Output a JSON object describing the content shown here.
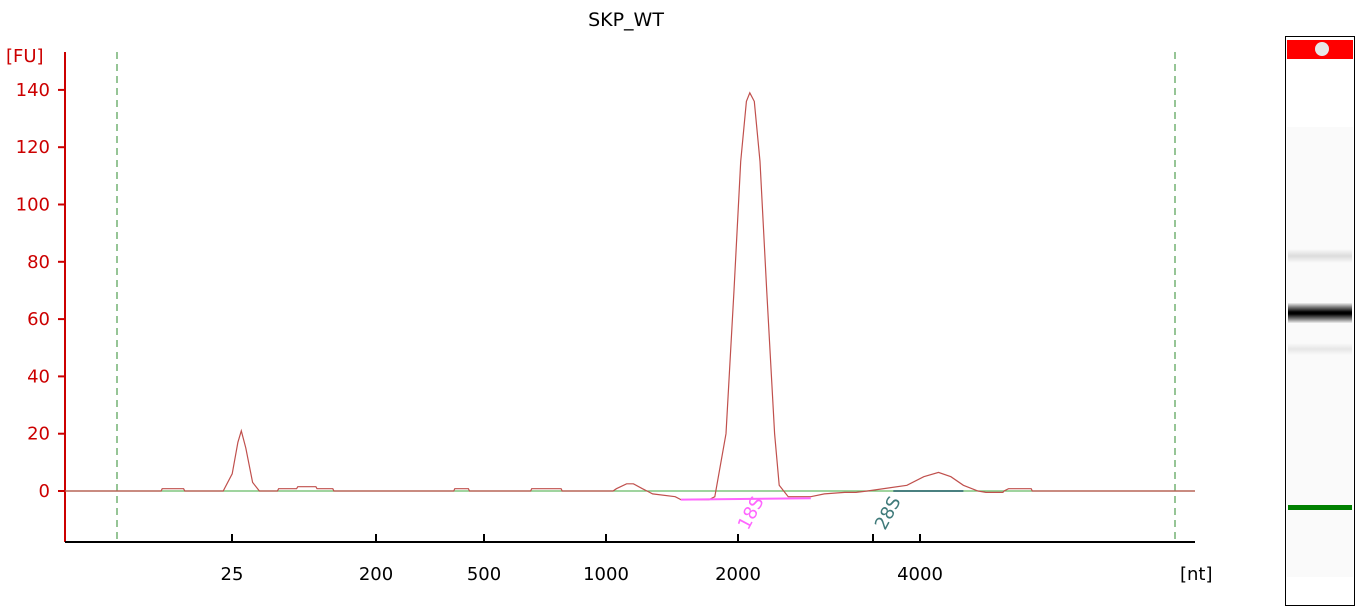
{
  "chart_data": {
    "type": "line",
    "title": "SKP_WT",
    "ylabel": "[FU]",
    "xlabel": "[nt]",
    "ylim": [
      -17,
      153
    ],
    "y_ticks": [
      0,
      20,
      40,
      60,
      80,
      100,
      120,
      140
    ],
    "x_ticks": [
      "25",
      "200",
      "500",
      "1000",
      "2000",
      "4000"
    ],
    "x_scale": "nonlinear",
    "grid": false,
    "markers": [
      "18S",
      "28S"
    ],
    "series": [
      {
        "color": "#c0504d",
        "points": [
          [
            0.0,
            0
          ],
          [
            0.085,
            0
          ],
          [
            0.086,
            0.8
          ],
          [
            0.105,
            0.8
          ],
          [
            0.106,
            0
          ],
          [
            0.14,
            0
          ],
          [
            0.148,
            6
          ],
          [
            0.153,
            17
          ],
          [
            0.156,
            21
          ],
          [
            0.16,
            15
          ],
          [
            0.166,
            3
          ],
          [
            0.172,
            0
          ],
          [
            0.188,
            0
          ],
          [
            0.189,
            0.8
          ],
          [
            0.205,
            0.8
          ],
          [
            0.206,
            1.5
          ],
          [
            0.222,
            1.5
          ],
          [
            0.223,
            0.8
          ],
          [
            0.237,
            0.8
          ],
          [
            0.238,
            0
          ],
          [
            0.344,
            0
          ],
          [
            0.345,
            0.8
          ],
          [
            0.357,
            0.8
          ],
          [
            0.358,
            0
          ],
          [
            0.412,
            0
          ],
          [
            0.413,
            0.8
          ],
          [
            0.439,
            0.8
          ],
          [
            0.44,
            0
          ],
          [
            0.485,
            0
          ],
          [
            0.488,
            0.8
          ],
          [
            0.497,
            2.5
          ],
          [
            0.503,
            2.5
          ],
          [
            0.511,
            0.8
          ],
          [
            0.515,
            0
          ],
          [
            0.52,
            -1
          ],
          [
            0.54,
            -2
          ],
          [
            0.545,
            -3
          ],
          [
            0.57,
            -3
          ],
          [
            0.575,
            -2
          ],
          [
            0.585,
            20
          ],
          [
            0.592,
            70
          ],
          [
            0.598,
            115
          ],
          [
            0.603,
            136
          ],
          [
            0.606,
            139
          ],
          [
            0.61,
            136
          ],
          [
            0.615,
            115
          ],
          [
            0.621,
            70
          ],
          [
            0.628,
            20
          ],
          [
            0.632,
            2
          ],
          [
            0.64,
            -2
          ],
          [
            0.66,
            -2
          ],
          [
            0.672,
            -1
          ],
          [
            0.69,
            -0.5
          ],
          [
            0.7,
            -0.5
          ],
          [
            0.71,
            0
          ],
          [
            0.745,
            2
          ],
          [
            0.76,
            5
          ],
          [
            0.773,
            6.5
          ],
          [
            0.784,
            5
          ],
          [
            0.795,
            2
          ],
          [
            0.808,
            0
          ],
          [
            0.815,
            -0.5
          ],
          [
            0.83,
            -0.5
          ],
          [
            0.831,
            0
          ],
          [
            0.835,
            0.8
          ],
          [
            0.855,
            0.8
          ],
          [
            0.856,
            0
          ],
          [
            0.875,
            0
          ],
          [
            1.0,
            0
          ]
        ]
      },
      {
        "color": "#66bb66",
        "points": [
          [
            0.0,
            0
          ],
          [
            1.0,
            0
          ]
        ]
      },
      {
        "color": "#ff66ff",
        "points": [
          [
            0.545,
            -3
          ],
          [
            0.66,
            -2.5
          ]
        ]
      },
      {
        "color": "#4a8080",
        "points": [
          [
            0.733,
            0
          ],
          [
            0.795,
            0
          ]
        ]
      }
    ]
  },
  "gel": {
    "header_color": "#ff0000",
    "band_color": "#000000",
    "marker_color": "#008000",
    "lane_level": 0.5
  }
}
